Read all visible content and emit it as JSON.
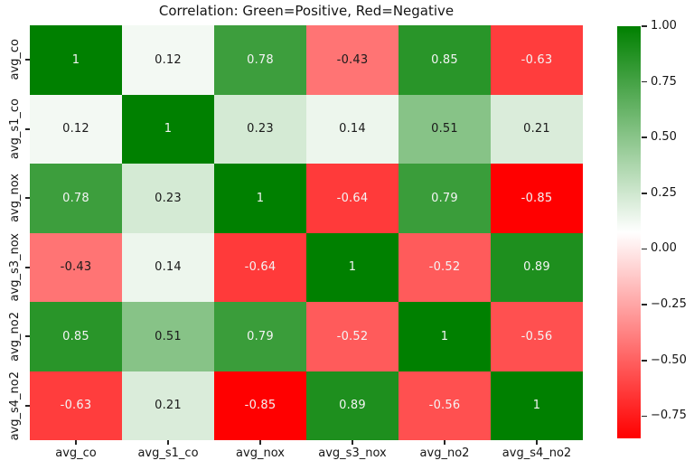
{
  "chart_data": {
    "type": "heatmap",
    "title": "Correlation: Green=Positive, Red=Negative",
    "x_labels": [
      "avg_co",
      "avg_s1_co",
      "avg_nox",
      "avg_s3_nox",
      "avg_no2",
      "avg_s4_no2"
    ],
    "y_labels": [
      "avg_co",
      "avg_s1_co",
      "avg_nox",
      "avg_s3_nox",
      "avg_no2",
      "avg_s4_no2"
    ],
    "matrix": [
      [
        1,
        0.12,
        0.78,
        -0.43,
        0.85,
        -0.63
      ],
      [
        0.12,
        1,
        0.23,
        0.14,
        0.51,
        0.21
      ],
      [
        0.78,
        0.23,
        1,
        -0.64,
        0.79,
        -0.85
      ],
      [
        -0.43,
        0.14,
        -0.64,
        1,
        -0.52,
        0.89
      ],
      [
        0.85,
        0.51,
        0.79,
        -0.52,
        1,
        -0.56
      ],
      [
        -0.63,
        0.21,
        -0.85,
        0.89,
        -0.56,
        1
      ]
    ],
    "vmin": -0.85,
    "vmax": 1.0,
    "colors": {
      "negative": "#ff0000",
      "center": "#ffffff",
      "positive": "#008000"
    },
    "text_colors": {
      "on_dark": "#f4f4f4",
      "on_light": "#1a1a1a"
    },
    "colorbar": {
      "position": "right",
      "tick_labels": [
        "1.00",
        "0.75",
        "0.50",
        "0.25",
        "0.00",
        "−0.25",
        "−0.50",
        "−0.75"
      ],
      "tick_values": [
        1.0,
        0.75,
        0.5,
        0.25,
        0.0,
        -0.25,
        -0.5,
        -0.75
      ]
    },
    "grid": false,
    "annotations": true
  }
}
